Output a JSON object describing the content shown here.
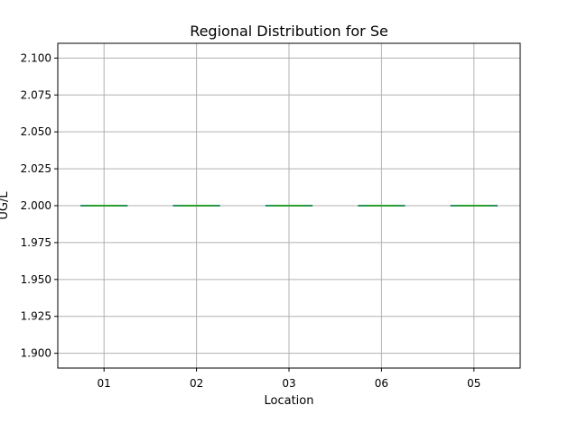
{
  "chart_data": {
    "type": "box",
    "title": "Regional Distribution for Se",
    "xlabel": "Location",
    "ylabel": "UG/L",
    "categories": [
      "01",
      "02",
      "03",
      "06",
      "05"
    ],
    "series": [
      {
        "values": [
          2.0,
          2.0,
          2.0,
          2.0,
          2.0
        ]
      }
    ],
    "ylim": [
      1.89,
      2.11
    ],
    "yticks": [
      1.9,
      1.925,
      1.95,
      1.975,
      2.0,
      2.025,
      2.05,
      2.075,
      2.1
    ],
    "ytick_labels": [
      "1.900",
      "1.925",
      "1.950",
      "1.975",
      "2.000",
      "2.025",
      "2.050",
      "2.075",
      "2.100"
    ],
    "grid": true,
    "colors": {
      "box": "#1f77b4",
      "median": "#2ca02c",
      "grid": "#b0b0b0",
      "axes": "#000000"
    }
  }
}
